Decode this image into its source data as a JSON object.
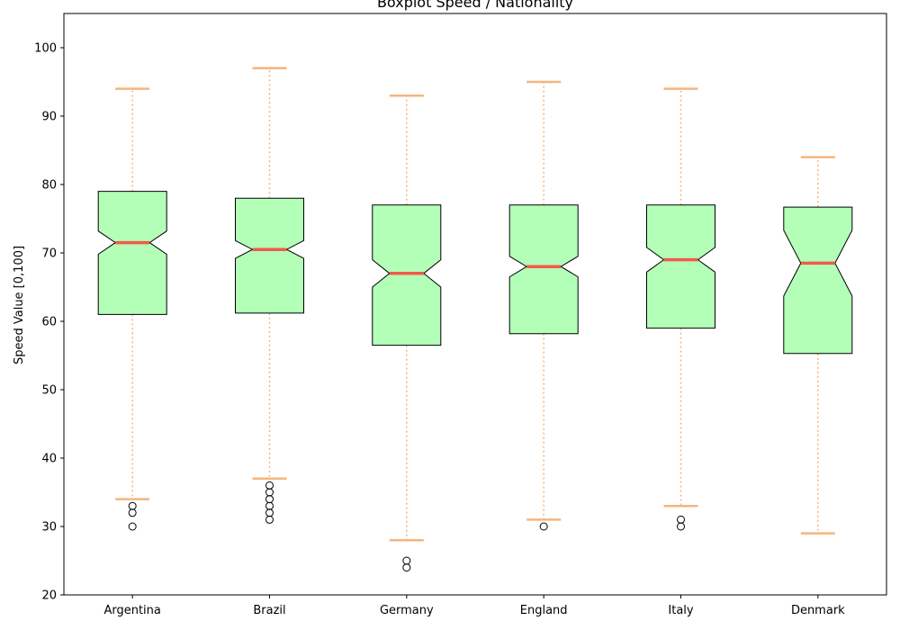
{
  "chart_data": {
    "type": "boxplot",
    "title": "Boxplot Speed / Nationality",
    "xlabel": "",
    "ylabel": "Speed Value [0,100]",
    "ylim": [
      20,
      105
    ],
    "yticks": [
      20,
      30,
      40,
      50,
      60,
      70,
      80,
      90,
      100
    ],
    "notched": true,
    "grid": false,
    "colors": {
      "box_fill": "#b3ffb8",
      "median": "#f15a4a",
      "whisker": "#f5b57d",
      "outline": "#000000"
    },
    "categories": [
      "Argentina",
      "Brazil",
      "Germany",
      "England",
      "Italy",
      "Denmark"
    ],
    "boxes": [
      {
        "q1": 61,
        "median": 71.5,
        "q3": 79,
        "whislo": 34,
        "whishi": 94,
        "notch_lo": 69.8,
        "notch_hi": 73.2,
        "fliers": [
          33,
          32,
          30
        ]
      },
      {
        "q1": 61.2,
        "median": 70.5,
        "q3": 78,
        "whislo": 37,
        "whishi": 97,
        "notch_lo": 69.2,
        "notch_hi": 71.8,
        "fliers": [
          36,
          35,
          34,
          33,
          32,
          31
        ]
      },
      {
        "q1": 56.5,
        "median": 67,
        "q3": 77,
        "whislo": 28,
        "whishi": 93,
        "notch_lo": 65,
        "notch_hi": 69,
        "fliers": [
          25,
          24
        ]
      },
      {
        "q1": 58.2,
        "median": 68,
        "q3": 77,
        "whislo": 31,
        "whishi": 95,
        "notch_lo": 66.5,
        "notch_hi": 69.5,
        "fliers": [
          30
        ]
      },
      {
        "q1": 59,
        "median": 69,
        "q3": 77,
        "whislo": 33,
        "whishi": 94,
        "notch_lo": 67.2,
        "notch_hi": 70.8,
        "fliers": [
          31,
          30
        ]
      },
      {
        "q1": 55.3,
        "median": 68.5,
        "q3": 76.7,
        "whislo": 29,
        "whishi": 84,
        "notch_lo": 63.7,
        "notch_hi": 73.3,
        "fliers": []
      }
    ]
  }
}
